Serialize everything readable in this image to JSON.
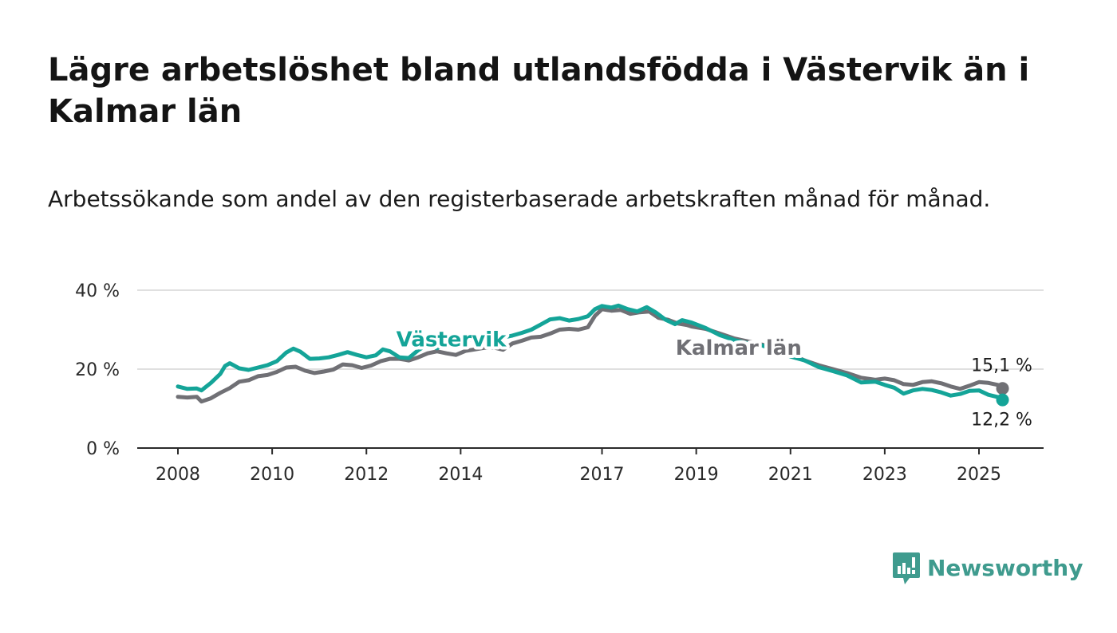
{
  "header": {
    "title": "Lägre arbetslöshet bland utlandsfödda i Västervik än i Kalmar län",
    "subtitle": "Arbetssökande som andel av den registerbaserade arbetskraften månad för månad."
  },
  "brand": {
    "name": "Newsworthy",
    "color": "#3f9b8e",
    "icon": "newsworthy-logo-icon"
  },
  "chart_data": {
    "type": "line",
    "ylim": [
      0,
      40
    ],
    "xlim": [
      2007.5,
      2026.6
    ],
    "yticks": [
      0,
      20,
      40
    ],
    "ytick_labels": [
      "0 %",
      "20 %",
      "40 %"
    ],
    "xticks": [
      2008,
      2010,
      2012,
      2014,
      2017,
      2019,
      2021,
      2023,
      2025
    ],
    "xtick_labels": [
      "2008",
      "2010",
      "2012",
      "2014",
      "2017",
      "2019",
      "2021",
      "2023",
      "2025"
    ],
    "grid": true,
    "series": [
      {
        "name": "Kalmar län",
        "color": "#707075",
        "end_label": "15,1 %",
        "points": [
          [
            2008.0,
            13.0
          ],
          [
            2008.2,
            12.8
          ],
          [
            2008.4,
            13.0
          ],
          [
            2008.5,
            11.8
          ],
          [
            2008.7,
            12.6
          ],
          [
            2008.9,
            14.0
          ],
          [
            2009.1,
            15.2
          ],
          [
            2009.3,
            16.8
          ],
          [
            2009.5,
            17.2
          ],
          [
            2009.7,
            18.2
          ],
          [
            2009.9,
            18.5
          ],
          [
            2010.1,
            19.3
          ],
          [
            2010.3,
            20.4
          ],
          [
            2010.5,
            20.6
          ],
          [
            2010.7,
            19.6
          ],
          [
            2010.9,
            19.0
          ],
          [
            2011.1,
            19.4
          ],
          [
            2011.3,
            19.9
          ],
          [
            2011.5,
            21.2
          ],
          [
            2011.7,
            21.0
          ],
          [
            2011.9,
            20.3
          ],
          [
            2012.1,
            20.9
          ],
          [
            2012.3,
            22.0
          ],
          [
            2012.5,
            22.6
          ],
          [
            2012.7,
            22.6
          ],
          [
            2012.9,
            22.2
          ],
          [
            2013.1,
            23.0
          ],
          [
            2013.3,
            24.0
          ],
          [
            2013.5,
            24.5
          ],
          [
            2013.7,
            24.0
          ],
          [
            2013.9,
            23.6
          ],
          [
            2014.1,
            24.6
          ],
          [
            2014.3,
            25.0
          ],
          [
            2014.5,
            25.4
          ],
          [
            2014.7,
            25.5
          ],
          [
            2014.9,
            24.9
          ],
          [
            2015.1,
            26.5
          ],
          [
            2015.3,
            27.2
          ],
          [
            2015.5,
            28.0
          ],
          [
            2015.7,
            28.2
          ],
          [
            2015.9,
            29.0
          ],
          [
            2016.1,
            30.0
          ],
          [
            2016.3,
            30.2
          ],
          [
            2016.5,
            30.0
          ],
          [
            2016.7,
            30.6
          ],
          [
            2016.85,
            33.5
          ],
          [
            2017.0,
            35.2
          ],
          [
            2017.2,
            34.8
          ],
          [
            2017.4,
            35.0
          ],
          [
            2017.6,
            34.0
          ],
          [
            2017.8,
            34.4
          ],
          [
            2018.0,
            34.6
          ],
          [
            2018.2,
            33.0
          ],
          [
            2018.4,
            32.5
          ],
          [
            2018.6,
            31.6
          ],
          [
            2018.8,
            31.2
          ],
          [
            2018.9,
            30.8
          ],
          [
            2019.2,
            30.2
          ],
          [
            2019.5,
            29.0
          ],
          [
            2019.8,
            27.8
          ],
          [
            2020.1,
            27.0
          ],
          [
            2020.4,
            26.2
          ],
          [
            2020.7,
            25.0
          ],
          [
            2021.0,
            23.8
          ],
          [
            2021.3,
            22.2
          ],
          [
            2021.6,
            21.0
          ],
          [
            2021.9,
            20.0
          ],
          [
            2022.2,
            19.0
          ],
          [
            2022.5,
            17.8
          ],
          [
            2022.8,
            17.3
          ],
          [
            2023.0,
            17.6
          ],
          [
            2023.2,
            17.2
          ],
          [
            2023.4,
            16.2
          ],
          [
            2023.6,
            16.0
          ],
          [
            2023.8,
            16.7
          ],
          [
            2024.0,
            16.9
          ],
          [
            2024.2,
            16.4
          ],
          [
            2024.4,
            15.6
          ],
          [
            2024.6,
            15.0
          ],
          [
            2024.8,
            15.8
          ],
          [
            2025.0,
            16.7
          ],
          [
            2025.2,
            16.5
          ],
          [
            2025.4,
            16.0
          ],
          [
            2025.5,
            15.1
          ]
        ]
      },
      {
        "name": "Västervik",
        "color": "#14a498",
        "end_label": "12,2 %",
        "points": [
          [
            2008.0,
            15.6
          ],
          [
            2008.2,
            15.0
          ],
          [
            2008.4,
            15.1
          ],
          [
            2008.5,
            14.6
          ],
          [
            2008.7,
            16.5
          ],
          [
            2008.9,
            18.8
          ],
          [
            2009.0,
            20.8
          ],
          [
            2009.1,
            21.5
          ],
          [
            2009.3,
            20.2
          ],
          [
            2009.5,
            19.8
          ],
          [
            2009.7,
            20.4
          ],
          [
            2009.9,
            21.0
          ],
          [
            2010.1,
            22.0
          ],
          [
            2010.3,
            24.2
          ],
          [
            2010.45,
            25.2
          ],
          [
            2010.6,
            24.4
          ],
          [
            2010.8,
            22.6
          ],
          [
            2011.0,
            22.7
          ],
          [
            2011.2,
            23.0
          ],
          [
            2011.4,
            23.6
          ],
          [
            2011.6,
            24.3
          ],
          [
            2011.8,
            23.6
          ],
          [
            2012.0,
            23.0
          ],
          [
            2012.2,
            23.5
          ],
          [
            2012.35,
            25.0
          ],
          [
            2012.5,
            24.5
          ],
          [
            2012.7,
            23.0
          ],
          [
            2012.9,
            22.8
          ],
          [
            2013.1,
            24.8
          ],
          [
            2013.3,
            26.3
          ],
          [
            2013.5,
            25.3
          ],
          [
            2013.7,
            26.8
          ],
          [
            2013.9,
            27.2
          ],
          [
            2014.1,
            27.5
          ],
          [
            2014.3,
            27.6
          ],
          [
            2014.5,
            27.5
          ],
          [
            2014.7,
            27.4
          ],
          [
            2014.9,
            28.0
          ],
          [
            2015.1,
            28.5
          ],
          [
            2015.3,
            29.2
          ],
          [
            2015.5,
            30.0
          ],
          [
            2015.7,
            31.3
          ],
          [
            2015.9,
            32.6
          ],
          [
            2016.1,
            32.9
          ],
          [
            2016.3,
            32.3
          ],
          [
            2016.5,
            32.7
          ],
          [
            2016.7,
            33.4
          ],
          [
            2016.85,
            35.2
          ],
          [
            2017.0,
            36.0
          ],
          [
            2017.2,
            35.6
          ],
          [
            2017.35,
            36.1
          ],
          [
            2017.55,
            35.2
          ],
          [
            2017.75,
            34.6
          ],
          [
            2017.95,
            35.7
          ],
          [
            2018.15,
            34.3
          ],
          [
            2018.35,
            32.5
          ],
          [
            2018.55,
            31.4
          ],
          [
            2018.7,
            32.4
          ],
          [
            2018.9,
            31.8
          ],
          [
            2019.2,
            30.4
          ],
          [
            2019.5,
            28.6
          ],
          [
            2019.8,
            27.4
          ],
          [
            2020.1,
            26.5
          ],
          [
            2020.4,
            26.0
          ],
          [
            2020.7,
            24.6
          ],
          [
            2021.0,
            23.2
          ],
          [
            2021.3,
            22.2
          ],
          [
            2021.6,
            20.5
          ],
          [
            2021.9,
            19.5
          ],
          [
            2022.2,
            18.4
          ],
          [
            2022.5,
            16.6
          ],
          [
            2022.8,
            16.8
          ],
          [
            2023.0,
            16.0
          ],
          [
            2023.2,
            15.3
          ],
          [
            2023.4,
            13.8
          ],
          [
            2023.6,
            14.6
          ],
          [
            2023.8,
            15.0
          ],
          [
            2024.0,
            14.7
          ],
          [
            2024.2,
            14.1
          ],
          [
            2024.4,
            13.3
          ],
          [
            2024.6,
            13.7
          ],
          [
            2024.8,
            14.5
          ],
          [
            2025.0,
            14.6
          ],
          [
            2025.2,
            13.5
          ],
          [
            2025.4,
            12.9
          ],
          [
            2025.5,
            12.2
          ]
        ]
      }
    ]
  }
}
